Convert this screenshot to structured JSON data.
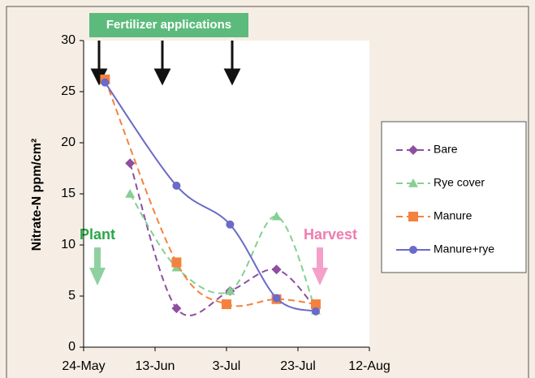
{
  "chart_data": {
    "type": "line",
    "ylabel": "Nitrate-N ppm/cm²",
    "annotations": [
      "Fertilizer applications",
      "Plant",
      "Harvest"
    ],
    "xlim": [
      "24-May",
      "12-Aug"
    ],
    "xticks": [
      "24-May",
      "13-Jun",
      "3-Jul",
      "23-Jul",
      "12-Aug"
    ],
    "ylim": [
      0,
      30
    ],
    "yticks": [
      0,
      5,
      10,
      15,
      20,
      25,
      30
    ],
    "legend": "right",
    "series": [
      {
        "name": "Bare",
        "color": "#8e4fa0",
        "dash": true,
        "marker": "diamond",
        "x": [
          "6-Jun",
          "19-Jun",
          "4-Jul",
          "17-Jul",
          "28-Jul"
        ],
        "values": [
          18,
          3.8,
          5.5,
          7.6,
          3.8
        ]
      },
      {
        "name": "Rye cover",
        "color": "#86cf94",
        "dash": true,
        "marker": "triangle",
        "x": [
          "6-Jun",
          "19-Jun",
          "4-Jul",
          "17-Jul",
          "28-Jul"
        ],
        "values": [
          15,
          7.8,
          5.5,
          12.8,
          3.6
        ]
      },
      {
        "name": "Manure",
        "color": "#f4823e",
        "dash": true,
        "marker": "square",
        "x": [
          "30-May",
          "19-Jun",
          "3-Jul",
          "17-Jul",
          "28-Jul"
        ],
        "values": [
          26.2,
          8.3,
          4.2,
          4.7,
          4.2
        ]
      },
      {
        "name": "Manure+rye",
        "color": "#6a6ac8",
        "dash": false,
        "marker": "circle",
        "x": [
          "30-May",
          "19-Jun",
          "4-Jul",
          "17-Jul",
          "28-Jul"
        ],
        "values": [
          25.9,
          15.8,
          12,
          4.8,
          3.5
        ]
      }
    ]
  }
}
